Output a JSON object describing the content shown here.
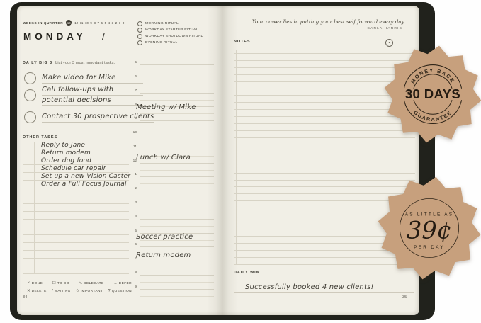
{
  "badge_color": "#c7a07d",
  "left_page": {
    "weeks_in_quarter": {
      "label": "WEEKS IN QUARTER",
      "current_week": "13",
      "weeks": [
        "12",
        "11",
        "10",
        "9",
        "8",
        "7",
        "6",
        "5",
        "4",
        "3",
        "2",
        "1",
        "0"
      ]
    },
    "day_title": "MONDAY",
    "date_slash": "/",
    "daily_big3": {
      "label": "DAILY BIG 3",
      "description": "List your 3 most important tasks.",
      "tasks": [
        [
          "Make video for Mike"
        ],
        [
          "Call follow-ups with",
          "potential decisions"
        ],
        [
          "Contact 30 prospective clients"
        ]
      ]
    },
    "other_tasks": {
      "label": "OTHER TASKS",
      "items": [
        "Reply to Jane",
        "Return modem",
        "Order dog food",
        "Schedule car repair",
        "Set up a new Vision Caster",
        "Order a Full Focus Journal"
      ],
      "blank_rows": 11
    },
    "legend": {
      "row1": [
        {
          "symbol": "✓",
          "label": "DONE"
        },
        {
          "symbol": "☐",
          "label": "TO DO"
        },
        {
          "symbol": "↘",
          "label": "DELEGATE"
        },
        {
          "symbol": "→",
          "label": "DEFER"
        }
      ],
      "row2": [
        {
          "symbol": "✕",
          "label": "DELETE"
        },
        {
          "symbol": "/",
          "label": "WAITING"
        },
        {
          "symbol": "✩",
          "label": "IMPORTANT"
        },
        {
          "symbol": "?",
          "label": "QUESTION"
        }
      ]
    },
    "page_number": "34"
  },
  "rituals": [
    "MORNING RITUAL",
    "WORKDAY STARTUP RITUAL",
    "WORKDAY SHUTDOWN RITUAL",
    "EVENING RITUAL"
  ],
  "schedule": {
    "hours": [
      "5",
      "6",
      "7",
      "8",
      "9",
      "10",
      "11",
      "12",
      "1",
      "2",
      "3",
      "4",
      "5",
      "6",
      "7",
      "8",
      "9"
    ],
    "entries": [
      {
        "row": 3,
        "text": "Meeting w/ Mike"
      },
      {
        "row": 6.55,
        "text": "Lunch w/ Clara"
      },
      {
        "row": 12.2,
        "text": "Soccer practice"
      },
      {
        "row": 13.55,
        "text": "Return modem"
      }
    ]
  },
  "right_page": {
    "quote": "Your power lies in putting your best self forward every day.",
    "quote_author": "CARLA HARRIS",
    "notes_label": "NOTES",
    "notes_lines": 31,
    "daily_win_label": "DAILY WIN",
    "daily_win_entry": "Successfully booked 4 new clients!",
    "page_number": "35"
  },
  "badges": {
    "money_back": {
      "top_text": "MONEY BACK",
      "center_text": "30 DAYS",
      "bottom_text": "GUARANTEE"
    },
    "price": {
      "top_text": "AS LITTLE AS",
      "center_text": "39¢",
      "bottom_text": "PER DAY"
    }
  }
}
